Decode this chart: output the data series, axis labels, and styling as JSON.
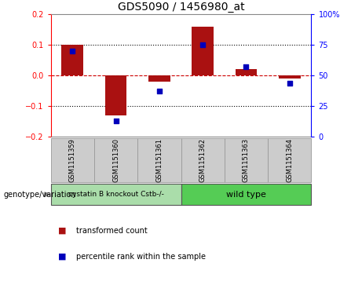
{
  "title": "GDS5090 / 1456980_at",
  "samples": [
    "GSM1151359",
    "GSM1151360",
    "GSM1151361",
    "GSM1151362",
    "GSM1151363",
    "GSM1151364"
  ],
  "transformed_count": [
    0.1,
    -0.13,
    -0.02,
    0.16,
    0.02,
    -0.01
  ],
  "percentile_rank": [
    70,
    13,
    37,
    75,
    57,
    44
  ],
  "ylim_left": [
    -0.2,
    0.2
  ],
  "ylim_right": [
    0,
    100
  ],
  "yticks_left": [
    -0.2,
    -0.1,
    0.0,
    0.1,
    0.2
  ],
  "yticks_right": [
    0,
    25,
    50,
    75,
    100
  ],
  "yticklabels_right": [
    "0",
    "25",
    "50",
    "75",
    "100%"
  ],
  "bar_color": "#aa1111",
  "scatter_color": "#0000bb",
  "zero_line_color": "#cc0000",
  "grid_color": "#000000",
  "group1_label": "cystatin B knockout Cstb-/-",
  "group2_label": "wild type",
  "group1_color": "#aaddaa",
  "group2_color": "#55cc55",
  "genotype_label": "genotype/variation",
  "legend_bar_label": "transformed count",
  "legend_scatter_label": "percentile rank within the sample",
  "title_fontsize": 10,
  "tick_fontsize": 7,
  "sample_box_color": "#cccccc",
  "sample_box_edge": "#999999"
}
